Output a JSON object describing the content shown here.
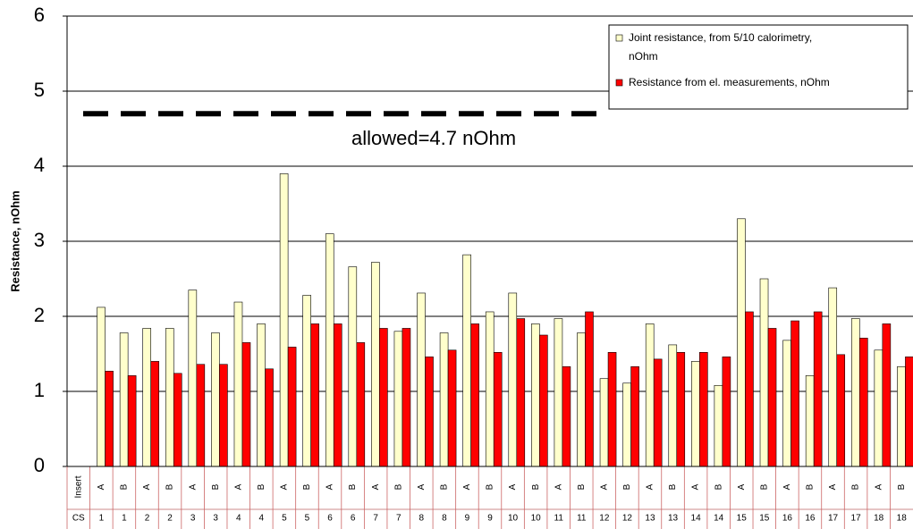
{
  "chart_data": {
    "type": "bar",
    "y_label": "Resistance, nOhm",
    "categories": [
      "Insert",
      "A",
      "B",
      "A",
      "B",
      "A",
      "B",
      "A",
      "B",
      "A",
      "B",
      "A",
      "B",
      "A",
      "B",
      "A",
      "B",
      "A",
      "B",
      "A",
      "B",
      "A",
      "B",
      "A",
      "B",
      "A",
      "B",
      "A",
      "B",
      "A",
      "B",
      "A",
      "B",
      "A",
      "B",
      "A",
      "B"
    ],
    "category_groups": [
      "CS",
      "1",
      "1",
      "2",
      "2",
      "3",
      "3",
      "4",
      "4",
      "5",
      "5",
      "6",
      "6",
      "7",
      "7",
      "8",
      "8",
      "9",
      "9",
      "10",
      "10",
      "11",
      "11",
      "12",
      "12",
      "13",
      "13",
      "14",
      "14",
      "15",
      "15",
      "16",
      "16",
      "17",
      "17",
      "18",
      "18"
    ],
    "series": [
      {
        "name": "Joint resistance, from 5/10 calorimetry, nOhm",
        "color": "#ffffcc",
        "values": [
          null,
          2.12,
          1.78,
          1.84,
          1.84,
          2.35,
          1.78,
          2.19,
          1.9,
          3.9,
          2.28,
          3.1,
          2.66,
          2.72,
          1.8,
          2.31,
          1.78,
          2.82,
          2.06,
          2.31,
          1.9,
          1.97,
          1.78,
          1.17,
          1.11,
          1.9,
          1.62,
          1.4,
          1.08,
          3.3,
          2.5,
          1.68,
          1.21,
          2.38,
          1.97,
          1.55,
          1.33
        ]
      },
      {
        "name": "Resistance from el. measurements, nOhm",
        "color": "#ff0000",
        "values": [
          null,
          1.27,
          1.21,
          1.4,
          1.24,
          1.36,
          1.36,
          1.65,
          1.3,
          1.59,
          1.9,
          1.9,
          1.65,
          1.84,
          1.84,
          1.46,
          1.55,
          1.9,
          1.52,
          1.97,
          1.75,
          1.33,
          2.06,
          1.52,
          1.33,
          1.43,
          1.52,
          1.52,
          1.46,
          2.06,
          1.84,
          1.94,
          2.06,
          1.49,
          1.71,
          1.9,
          1.46
        ]
      }
    ],
    "threshold": {
      "value": 4.7,
      "label": "allowed=4.7 nOhm"
    },
    "ylim": [
      0,
      6
    ],
    "yticks": [
      0,
      1,
      2,
      3,
      4,
      5,
      6
    ],
    "grid": true,
    "legend": "top-right"
  }
}
